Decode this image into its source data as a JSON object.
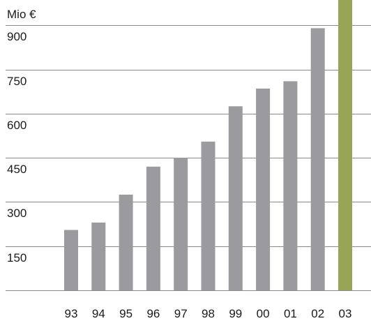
{
  "chart_data": {
    "type": "bar",
    "title": "",
    "xlabel": "",
    "ylabel": "Mio €",
    "categories": [
      "93",
      "94",
      "95",
      "96",
      "97",
      "98",
      "99",
      "00",
      "01",
      "02",
      "03"
    ],
    "values": [
      205,
      230,
      325,
      420,
      450,
      505,
      625,
      685,
      710,
      890,
      1000
    ],
    "ylim": [
      0,
      1000
    ],
    "yticks": [
      150,
      300,
      450,
      600,
      750,
      900
    ],
    "grid": true,
    "colors": {
      "bar": "#9b9b9f",
      "highlight_bar": "#98a556",
      "grid": "#8a8a8a",
      "text": "#1a1a1a"
    },
    "highlight_index": 10
  }
}
